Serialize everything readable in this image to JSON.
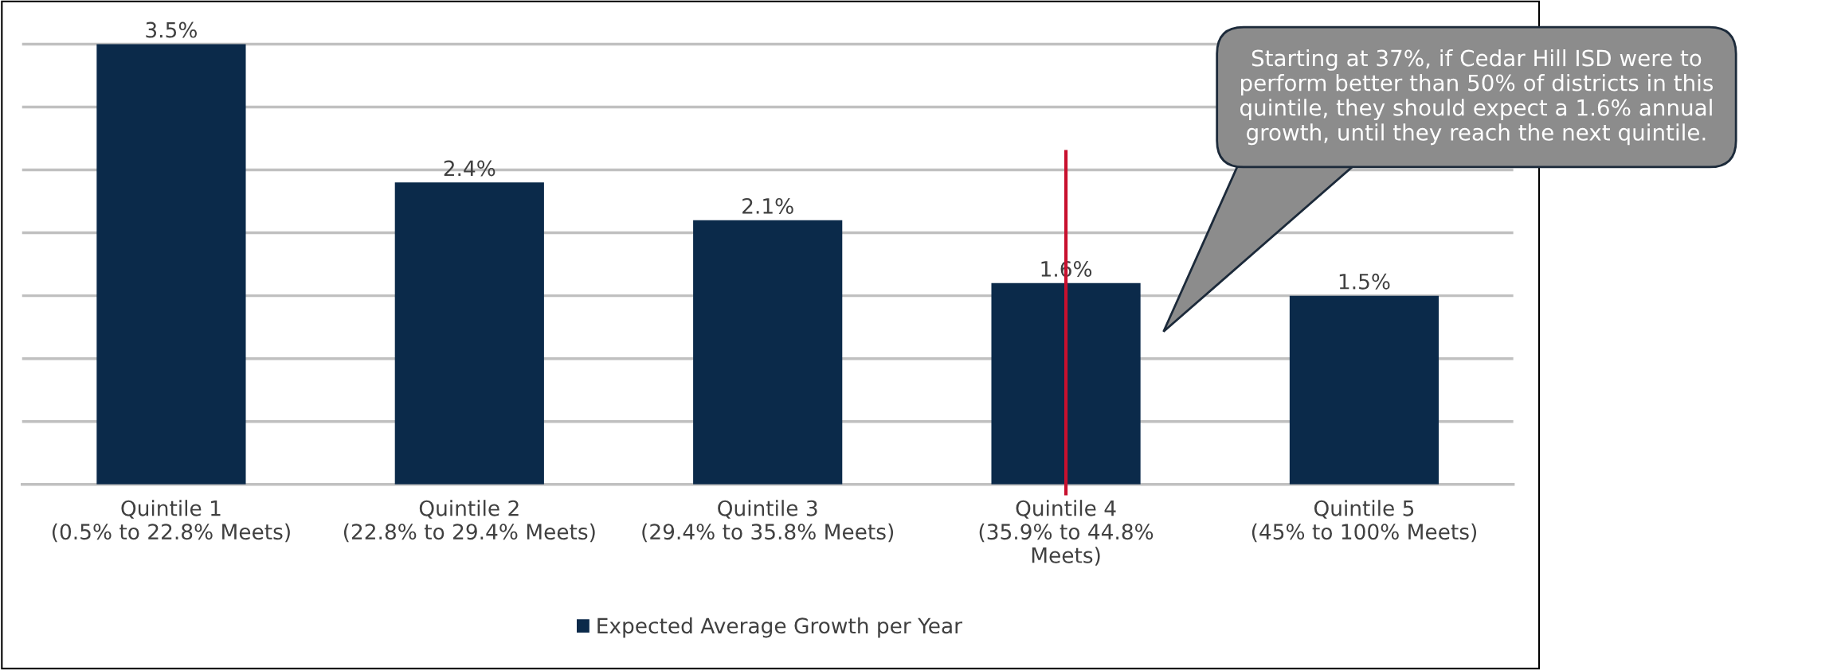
{
  "chart_data": {
    "type": "bar",
    "categories": [
      "Quintile 1\n(0.5% to 22.8% Meets)",
      "Quintile 2\n(22.8% to 29.4% Meets)",
      "Quintile 3\n(29.4% to 35.8% Meets)",
      "Quintile 4\n(35.9% to 44.8%\nMeets)",
      "Quintile 5\n(45% to 100% Meets)"
    ],
    "series": [
      {
        "name": "Expected Average Growth per Year",
        "color": "#0b2a4a",
        "values": [
          3.5,
          2.4,
          2.1,
          1.6,
          1.5
        ],
        "value_labels": [
          "3.5%",
          "2.4%",
          "2.1%",
          "1.6%",
          "1.5%"
        ]
      }
    ],
    "ref_lines": [
      {
        "axis": "x",
        "value": "Quintile 4\n(35.9% to 44.8%\nMeets)",
        "color": "#c8102e",
        "line_style": "solid"
      }
    ],
    "tick_labels": "x",
    "grid": "y",
    "legend": "bottom",
    "annotations": [
      "Starting at 37%, if Cedar Hill ISD were to\nperform better than 50% of districts in this\nquintile, they should expect a 1.6% annual\ngrowth, until they reach the next quintile."
    ]
  }
}
